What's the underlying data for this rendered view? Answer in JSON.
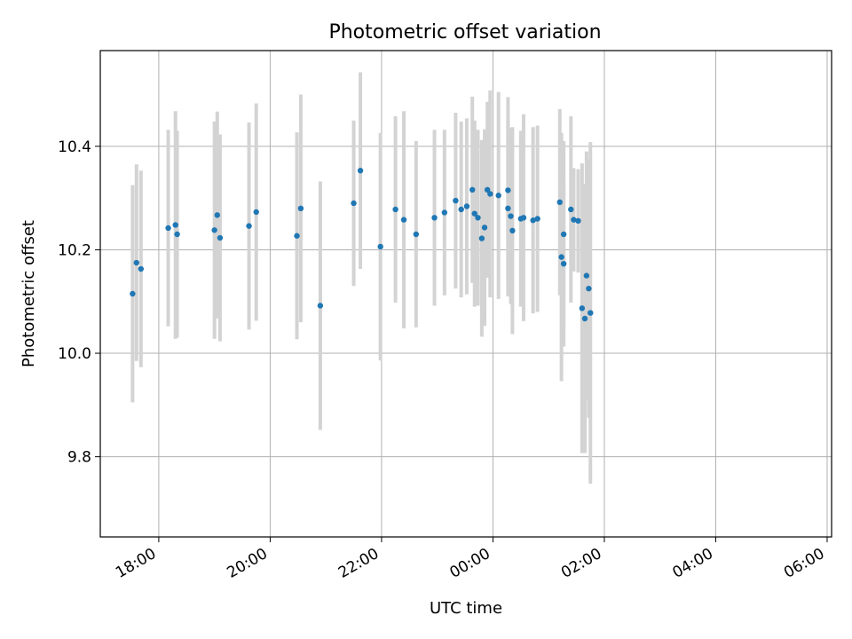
{
  "chart_data": {
    "type": "scatter",
    "title": "Photometric offset variation",
    "xlabel": "UTC time",
    "ylabel": "Photometric offset",
    "grid": true,
    "x_unit": "hours relative to 00:00 UTC",
    "xlim": [
      -7.05,
      6.08
    ],
    "ylim": [
      9.645,
      10.585
    ],
    "xticks": [
      -6,
      -4,
      -2,
      0,
      2,
      4,
      6
    ],
    "xtick_labels": [
      "18:00",
      "20:00",
      "22:00",
      "00:00",
      "02:00",
      "04:00",
      "06:00"
    ],
    "yticks": [
      9.8,
      10.0,
      10.2,
      10.4
    ],
    "ytick_labels": [
      "9.8",
      "10.0",
      "10.2",
      "10.4"
    ],
    "marker_color": "#1f77b4",
    "errorbar_color": "#d3d3d3",
    "series": [
      {
        "name": "Photometric offset",
        "x": [
          -6.47,
          -6.4,
          -6.32,
          -5.83,
          -5.7,
          -5.67,
          -5.0,
          -4.95,
          -4.9,
          -4.38,
          -4.25,
          -3.52,
          -3.45,
          -3.1,
          -2.5,
          -2.38,
          -2.02,
          -1.75,
          -1.6,
          -1.38,
          -1.05,
          -0.87,
          -0.67,
          -0.57,
          -0.47,
          -0.37,
          -0.33,
          -0.27,
          -0.2,
          -0.15,
          -0.1,
          -0.05,
          0.1,
          0.27,
          0.27,
          0.32,
          0.35,
          0.5,
          0.55,
          0.72,
          0.8,
          1.2,
          1.23,
          1.27,
          1.27,
          1.4,
          1.45,
          1.53,
          1.6,
          1.65,
          1.68,
          1.72,
          1.75
        ],
        "y": [
          10.115,
          10.175,
          10.163,
          10.242,
          10.248,
          10.23,
          10.238,
          10.267,
          10.223,
          10.246,
          10.273,
          10.227,
          10.28,
          10.092,
          10.29,
          10.353,
          10.206,
          10.278,
          10.258,
          10.23,
          10.262,
          10.272,
          10.295,
          10.278,
          10.284,
          10.316,
          10.27,
          10.262,
          10.222,
          10.243,
          10.316,
          10.308,
          10.305,
          10.28,
          10.315,
          10.265,
          10.237,
          10.26,
          10.262,
          10.257,
          10.26,
          10.292,
          10.186,
          10.173,
          10.23,
          10.278,
          10.258,
          10.256,
          10.087,
          10.067,
          10.15,
          10.125,
          10.078
        ],
        "yerr": [
          0.21,
          0.19,
          0.19,
          0.19,
          0.22,
          0.2,
          0.21,
          0.2,
          0.2,
          0.2,
          0.21,
          0.2,
          0.22,
          0.24,
          0.16,
          0.19,
          0.22,
          0.18,
          0.21,
          0.18,
          0.17,
          0.16,
          0.17,
          0.17,
          0.17,
          0.18,
          0.18,
          0.17,
          0.19,
          0.19,
          0.17,
          0.2,
          0.2,
          0.17,
          0.18,
          0.17,
          0.2,
          0.17,
          0.2,
          0.18,
          0.18,
          0.18,
          0.24,
          0.16,
          0.18,
          0.18,
          0.1,
          0.1,
          0.28,
          0.26,
          0.24,
          0.25,
          0.33
        ]
      }
    ]
  }
}
